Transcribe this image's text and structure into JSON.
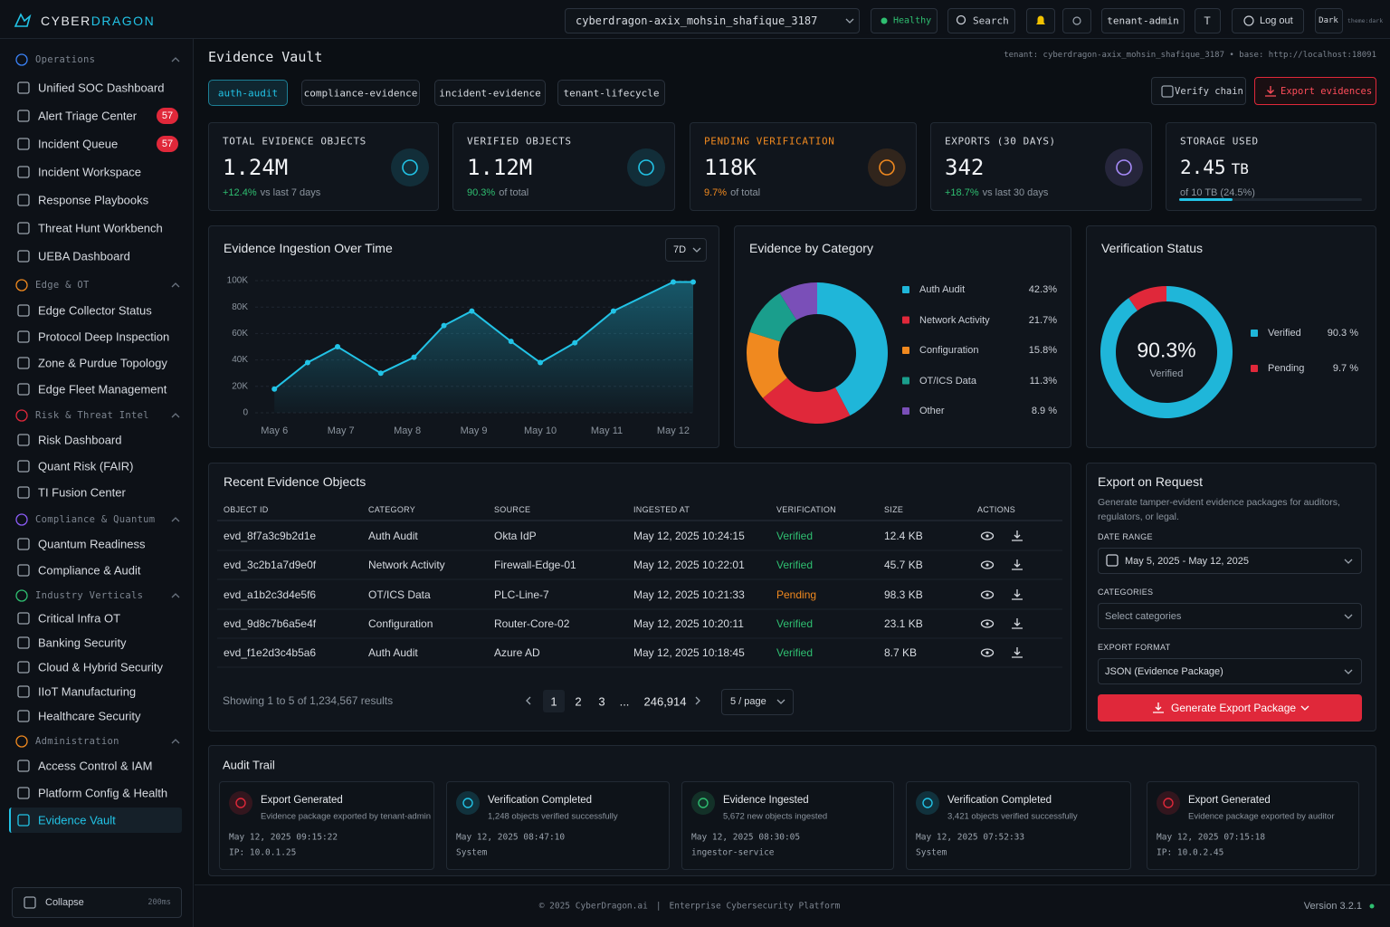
{
  "header": {
    "brand_a": "CYBER",
    "brand_b": "DRAGON",
    "tenant": "cyberdragon-axix_mohsin_shafique_3187",
    "status": "Healthy",
    "search": "Search",
    "user": "tenant-admin",
    "avatar": "T",
    "logout": "Log out",
    "theme": "Dark",
    "theme_tag": "theme:dark"
  },
  "sidebar": {
    "sections": [
      {
        "title": "Operations",
        "items": [
          {
            "label": "Unified SOC Dashboard"
          },
          {
            "label": "Alert Triage Center",
            "badge": "57"
          },
          {
            "label": "Incident Queue",
            "badge": "57"
          },
          {
            "label": "Incident Workspace"
          },
          {
            "label": "Response Playbooks"
          },
          {
            "label": "Threat Hunt Workbench"
          },
          {
            "label": "UEBA Dashboard"
          }
        ]
      },
      {
        "title": "Edge & OT",
        "items": [
          {
            "label": "Edge Collector Status"
          },
          {
            "label": "Protocol Deep Inspection"
          },
          {
            "label": "Zone & Purdue Topology"
          },
          {
            "label": "Edge Fleet Management"
          }
        ]
      },
      {
        "title": "Risk & Threat Intel",
        "items": [
          {
            "label": "Risk Dashboard"
          },
          {
            "label": "Quant Risk (FAIR)"
          },
          {
            "label": "TI Fusion Center"
          }
        ]
      },
      {
        "title": "Compliance & Quantum",
        "items": [
          {
            "label": "Quantum Readiness"
          },
          {
            "label": "Compliance & Audit"
          }
        ]
      },
      {
        "title": "Industry Verticals",
        "items": [
          {
            "label": "Critical Infra OT"
          },
          {
            "label": "Banking Security"
          },
          {
            "label": "Cloud & Hybrid Security"
          },
          {
            "label": "IIoT Manufacturing"
          },
          {
            "label": "Healthcare Security"
          }
        ]
      },
      {
        "title": "Administration",
        "items": [
          {
            "label": "Access Control & IAM"
          },
          {
            "label": "Platform Config & Health"
          },
          {
            "label": "Evidence Vault"
          }
        ]
      }
    ],
    "collapse": "Collapse",
    "collapse_note": "200ms"
  },
  "page": {
    "title": "Evidence Vault",
    "meta": "tenant: cyberdragon-axix_mohsin_shafique_3187 • base: http://localhost:18091",
    "tabs": [
      "auth-audit",
      "compliance-evidence",
      "incident-evidence",
      "tenant-lifecycle"
    ],
    "verify": "Verify chain",
    "export": "Export evidences"
  },
  "kpis": [
    {
      "label": "TOTAL EVIDENCE OBJECTS",
      "value": "1.24M",
      "delta": "+12.4%",
      "note": "vs last 7 days"
    },
    {
      "label": "VERIFIED OBJECTS",
      "value": "1.12M",
      "delta": "90.3%",
      "note": "of total"
    },
    {
      "label": "PENDING VERIFICATION",
      "value": "118K",
      "delta": "9.7%",
      "note": "of total"
    },
    {
      "label": "EXPORTS (30 DAYS)",
      "value": "342",
      "delta": "+18.7%",
      "note": "vs last 30 days"
    },
    {
      "label": "STORAGE USED",
      "value": "2.45",
      "unit": "TB",
      "note": "of 10 TB (24.5%)"
    }
  ],
  "chart_data": [
    {
      "type": "line",
      "title": "Evidence Ingestion Over Time",
      "range": "7D",
      "grid": true,
      "x": [
        6,
        6.5,
        6.95,
        7.6,
        8.1,
        8.55,
        8.97,
        9.56,
        10,
        10.52,
        11.1,
        12,
        12.3
      ],
      "xlim": [
        5.82,
        12.3
      ],
      "xticks": [
        {
          "value": 6,
          "label": "May 6"
        },
        {
          "value": 7,
          "label": "May 7"
        },
        {
          "value": 8,
          "label": "May 8"
        },
        {
          "value": 9,
          "label": "May 9"
        },
        {
          "value": 10,
          "label": "May 10"
        },
        {
          "value": 11,
          "label": "May 11"
        },
        {
          "value": 12,
          "label": "May 12"
        }
      ],
      "ylim": [
        0,
        100000
      ],
      "yticks": [
        0,
        {
          "value": 20000,
          "label": "20K"
        },
        {
          "value": 40000,
          "label": "40K"
        },
        {
          "value": 60000,
          "label": "60K"
        },
        {
          "value": 80000,
          "label": "80K"
        },
        {
          "value": 100000,
          "label": "100K"
        }
      ],
      "series": [
        {
          "color": "#22c3e6",
          "values": [
            18000,
            38000,
            50000,
            30000,
            42000,
            66000,
            77000,
            54000,
            38000,
            53000,
            77000,
            99000,
            99000
          ]
        }
      ]
    },
    {
      "type": "donut",
      "title": "Evidence by Category",
      "categories": [
        "Auth Audit",
        "Network Activity",
        "Configuration",
        "OT/ICS Data",
        "Other"
      ],
      "values": [
        42.3,
        21.7,
        15.8,
        11.3,
        8.9
      ],
      "value_labels": [
        "42.3%",
        "21.7%",
        "15.8%",
        "11.3%",
        "8.9 %"
      ],
      "colors": [
        "#1fb6d9",
        "#e0283a",
        "#f0891f",
        "#1a9e8c",
        "#7a4fb8"
      ]
    },
    {
      "type": "donut",
      "title": "Verification Status",
      "categories": [
        "Verified",
        "Pending"
      ],
      "values": [
        90.3,
        9.7
      ],
      "value_labels": [
        "90.3 %",
        "9.7 %"
      ],
      "colors": [
        "#1fb6d9",
        "#e0283a"
      ],
      "center_label": "90.3%",
      "center_sub": "Verified"
    }
  ],
  "table": {
    "title": "Recent Evidence Objects",
    "columns": [
      "OBJECT ID",
      "CATEGORY",
      "SOURCE",
      "INGESTED AT",
      "VERIFICATION",
      "SIZE",
      "ACTIONS"
    ],
    "rows": [
      [
        "evd_8f7a3c9b2d1e",
        "Auth Audit",
        "Okta IdP",
        "May 12, 2025 10:24:15",
        "Verified",
        "12.4 KB"
      ],
      [
        "evd_3c2b1a7d9e0f",
        "Network Activity",
        "Firewall-Edge-01",
        "May 12, 2025 10:22:01",
        "Verified",
        "45.7 KB"
      ],
      [
        "evd_a1b2c3d4e5f6",
        "OT/ICS Data",
        "PLC-Line-7",
        "May 12, 2025 10:21:33",
        "Pending",
        "98.3 KB"
      ],
      [
        "evd_9d8c7b6a5e4f",
        "Configuration",
        "Router-Core-02",
        "May 12, 2025 10:20:11",
        "Verified",
        "23.1 KB"
      ],
      [
        "evd_f1e2d3c4b5a6",
        "Auth Audit",
        "Azure AD",
        "May 12, 2025 10:18:45",
        "Verified",
        "8.7 KB"
      ]
    ],
    "status_colors": {
      "Verified": "#2fbf71",
      "Pending": "#f0891f"
    },
    "summary": "Showing 1 to 5 of 1,234,567 results",
    "pages": [
      "1",
      "2",
      "3",
      "...",
      "246,914"
    ],
    "page_size": "5 / page"
  },
  "export": {
    "title": "Export on Request",
    "description": "Generate tamper-evident evidence packages for auditors, regulators, or legal.",
    "fields": [
      {
        "label": "DATE RANGE",
        "value": "May 5, 2025 - May 12, 2025"
      },
      {
        "label": "CATEGORIES",
        "value": "Select categories"
      },
      {
        "label": "EXPORT FORMAT",
        "value": "JSON (Evidence Package)"
      }
    ],
    "button": "Generate Export Package"
  },
  "audit": {
    "title": "Audit Trail",
    "items": [
      {
        "title": "Export Generated",
        "desc": "Evidence package exported by tenant-admin",
        "time": "May 12, 2025 09:15:22",
        "actor": "IP: 10.0.1.25"
      },
      {
        "title": "Verification Completed",
        "desc": "1,248 objects verified successfully",
        "time": "May 12, 2025 08:47:10",
        "actor": "System"
      },
      {
        "title": "Evidence Ingested",
        "desc": "5,672 new objects ingested",
        "time": "May 12, 2025 08:30:05",
        "actor": "ingestor-service"
      },
      {
        "title": "Verification Completed",
        "desc": "3,421 objects verified successfully",
        "time": "May 12, 2025 07:52:33",
        "actor": "System"
      },
      {
        "title": "Export Generated",
        "desc": "Evidence package exported by auditor",
        "time": "May 12, 2025 07:15:18",
        "actor": "IP: 10.0.2.45"
      }
    ]
  },
  "footer": {
    "copyright": "© 2025 CyberDragon.ai",
    "separator": "|",
    "tagline": "Enterprise Cybersecurity Platform",
    "version": "Version 3.2.1"
  }
}
